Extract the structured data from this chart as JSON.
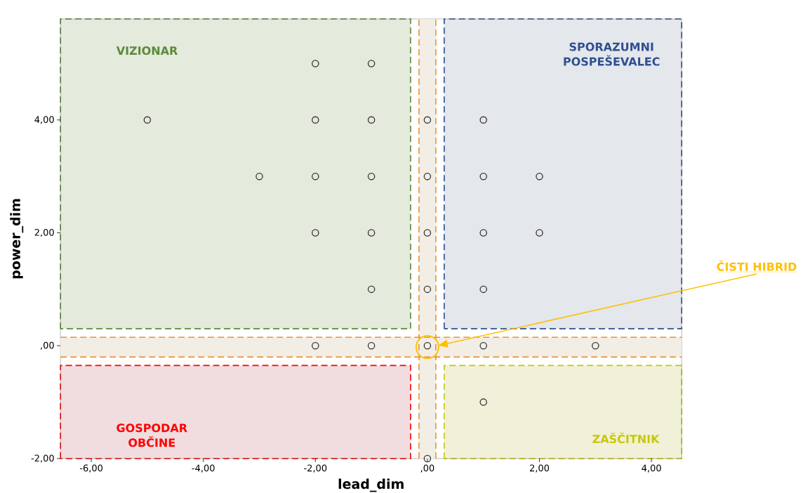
{
  "chart_data": {
    "type": "scatter",
    "xlabel": "lead_dim",
    "ylabel": "power_dim",
    "series": [
      {
        "color": "#333333",
        "x": [
          -5,
          -3,
          -2,
          -1,
          -2,
          -1,
          -2,
          -1,
          -2,
          -1,
          -1,
          0,
          1,
          0,
          1,
          2,
          0,
          1,
          2,
          0,
          1,
          -2,
          -1,
          0,
          1,
          3,
          1,
          0
        ],
        "values": [
          4,
          3,
          5,
          5,
          4,
          4,
          3,
          3,
          2,
          2,
          1,
          4,
          4,
          3,
          3,
          3,
          2,
          2,
          2,
          1,
          1,
          0,
          0,
          0,
          0,
          0,
          -1,
          -2
        ]
      }
    ],
    "marker": "circle",
    "grid": false,
    "ref_lines": [
      {
        "axis": "x",
        "value": -0.15,
        "color": "#f09030",
        "line_style": "dashed"
      },
      {
        "axis": "x",
        "value": 0.15,
        "color": "#f09030",
        "line_style": "dashed"
      },
      {
        "axis": "y",
        "value": -0.2,
        "color": "#f09030",
        "line_style": "dashed"
      },
      {
        "axis": "y",
        "value": 0.15,
        "color": "#f09030",
        "line_style": "dashed"
      }
    ],
    "xlim": [
      -6.55,
      4.54
    ],
    "ylim": [
      -2,
      5.79
    ],
    "xticks": [
      {
        "value": -6,
        "label": "-6,00"
      },
      {
        "value": -4,
        "label": "-4,00"
      },
      {
        "value": -2,
        "label": "-2,00"
      },
      {
        "value": 0,
        "label": ",00"
      },
      {
        "value": 2,
        "label": "2,00"
      },
      {
        "value": 4,
        "label": "4,00"
      }
    ],
    "yticks": [
      {
        "value": -2,
        "label": "-2,00"
      },
      {
        "value": 0,
        "label": ",00"
      },
      {
        "value": 2,
        "label": "2,00"
      },
      {
        "value": 4,
        "label": "4,00"
      }
    ],
    "bands": [
      {
        "axis": "x",
        "from": -0.15,
        "to": 0.15,
        "color": "#f2eee6"
      },
      {
        "axis": "y",
        "from": -0.2,
        "to": 0.15,
        "color": "#f2eee6"
      }
    ],
    "annotations": [
      "VIZIONAR",
      "SPORAZUMNI POSPEŠEVALEC",
      "GOSPODAR OBČINE",
      "ZAŠČITNIK",
      "ČISTI HIBRID"
    ]
  }
}
